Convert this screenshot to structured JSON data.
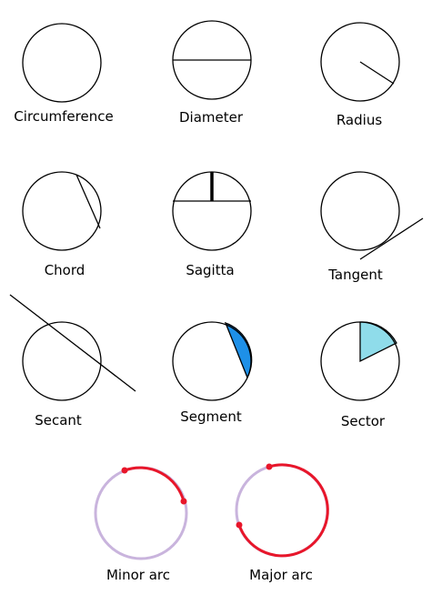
{
  "diagram": {
    "labels": {
      "circumference": "Circumference",
      "diameter": "Diameter",
      "radius": "Radius",
      "chord": "Chord",
      "sagitta": "Sagitta",
      "tangent": "Tangent",
      "secant": "Secant",
      "segment": "Segment",
      "sector": "Sector",
      "minor_arc": "Minor arc",
      "major_arc": "Major arc"
    },
    "colors": {
      "outline": "#000000",
      "segment_fill": "#1e90e8",
      "sector_fill": "#8fdcea",
      "arc_highlight": "#e8162a",
      "arc_rest": "#c9b4dd"
    }
  }
}
